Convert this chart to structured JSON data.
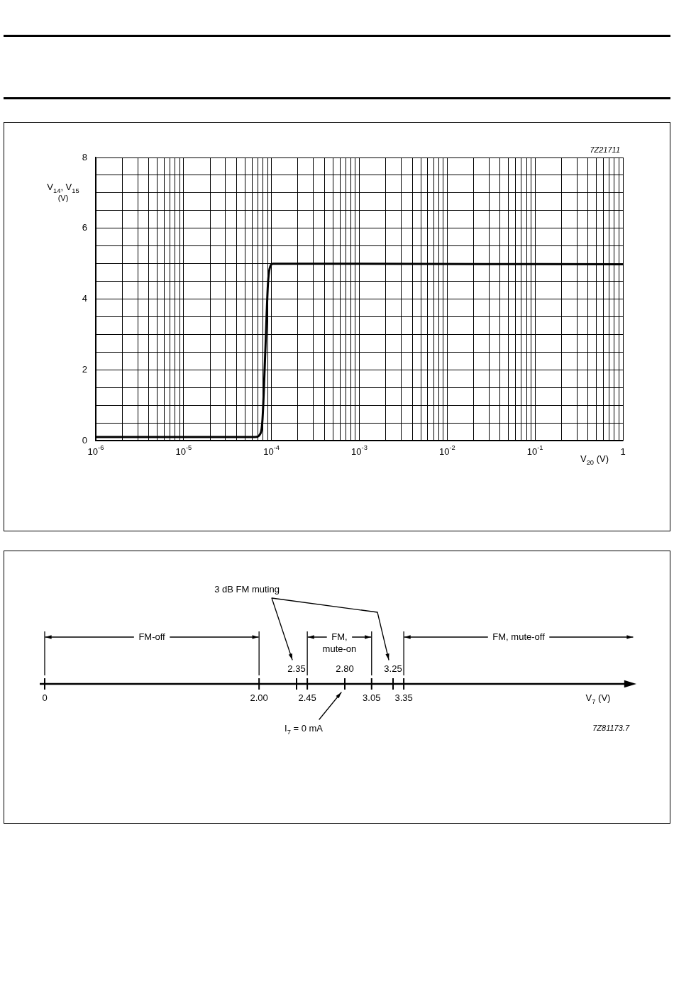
{
  "chart_data": [
    {
      "type": "line",
      "xlabel": "V$_{20}$ (V)",
      "ylabel": "V$_{14}$, V$_{15}$ (V)",
      "annotations": [
        "7Z21711"
      ],
      "log": "x",
      "color": "#000000",
      "x": [
        1e-06,
        6.5e-05,
        7.5e-05,
        7.9e-05,
        8.5e-05,
        9.1e-05,
        9.5e-05,
        0.000105,
        1
      ],
      "values": [
        0.1,
        0.1,
        0.2,
        0.6,
        2.5,
        4.4,
        4.85,
        5,
        4.98
      ],
      "xlim": [
        1e-06,
        1
      ],
      "ylim": [
        0,
        8
      ],
      "grid": true,
      "xticks": [
        {
          "value": 1e-06,
          "label": "10$^{-6}$"
        },
        {
          "value": 2e-06,
          "label": null
        },
        {
          "value": 3e-06,
          "label": null
        },
        {
          "value": 4e-06,
          "label": null
        },
        {
          "value": 5e-06,
          "label": null
        },
        {
          "value": 6e-06,
          "label": null
        },
        {
          "value": 7e-06,
          "label": null
        },
        {
          "value": 8e-06,
          "label": null
        },
        {
          "value": 9e-06,
          "label": null
        },
        {
          "value": 1e-05,
          "label": "10$^{-5}$"
        },
        {
          "value": 2e-05,
          "label": null
        },
        {
          "value": 3e-05,
          "label": null
        },
        {
          "value": 4e-05,
          "label": null
        },
        {
          "value": 5e-05,
          "label": null
        },
        {
          "value": 6e-05,
          "label": null
        },
        {
          "value": 7e-05,
          "label": null
        },
        {
          "value": 8e-05,
          "label": null
        },
        {
          "value": 9e-05,
          "label": null
        },
        {
          "value": 0.0001,
          "label": "10$^{-4}$"
        },
        {
          "value": 0.0002,
          "label": null
        },
        {
          "value": 0.0003,
          "label": null
        },
        {
          "value": 0.0004,
          "label": null
        },
        {
          "value": 0.0005,
          "label": null
        },
        {
          "value": 0.0006,
          "label": null
        },
        {
          "value": 0.0007,
          "label": null
        },
        {
          "value": 0.0008,
          "label": null
        },
        {
          "value": 0.0009,
          "label": null
        },
        {
          "value": 0.001,
          "label": "10$^{-3}$"
        },
        {
          "value": 0.002,
          "label": null
        },
        {
          "value": 0.003,
          "label": null
        },
        {
          "value": 0.004,
          "label": null
        },
        {
          "value": 0.005,
          "label": null
        },
        {
          "value": 0.006,
          "label": null
        },
        {
          "value": 0.007,
          "label": null
        },
        {
          "value": 0.008,
          "label": null
        },
        {
          "value": 0.009,
          "label": null
        },
        {
          "value": 0.01,
          "label": "10$^{-2}$"
        },
        {
          "value": 0.02,
          "label": null
        },
        {
          "value": 0.03,
          "label": null
        },
        {
          "value": 0.04,
          "label": null
        },
        {
          "value": 0.05,
          "label": null
        },
        {
          "value": 0.06,
          "label": null
        },
        {
          "value": 0.07,
          "label": null
        },
        {
          "value": 0.08,
          "label": null
        },
        {
          "value": 0.09,
          "label": null
        },
        {
          "value": 0.1,
          "label": "10$^{-1}$"
        },
        {
          "value": 0.2,
          "label": null
        },
        {
          "value": 0.3,
          "label": null
        },
        {
          "value": 0.4,
          "label": null
        },
        {
          "value": 0.5,
          "label": null
        },
        {
          "value": 0.6,
          "label": null
        },
        {
          "value": 0.7,
          "label": null
        },
        {
          "value": 0.8,
          "label": null
        },
        {
          "value": 0.9,
          "label": null
        },
        1
      ],
      "yticks": [
        0,
        {
          "value": 0.5,
          "label": null
        },
        {
          "value": 1,
          "label": null
        },
        {
          "value": 1.5,
          "label": null
        },
        2,
        {
          "value": 2.5,
          "label": null
        },
        {
          "value": 3,
          "label": null
        },
        {
          "value": 3.5,
          "label": null
        },
        4,
        {
          "value": 4.5,
          "label": null
        },
        {
          "value": 5,
          "label": null
        },
        {
          "value": 5.5,
          "label": null
        },
        6,
        {
          "value": 6.5,
          "label": null
        },
        {
          "value": 7,
          "label": null
        },
        {
          "value": 7.5,
          "label": null
        },
        8
      ]
    },
    {
      "type": "other",
      "xlabel": "V$_{7}$ (V)",
      "annotations": [
        "3 dB FM muting",
        "FM-off",
        "FM,\nmute-on",
        "FM, mute-off",
        "0",
        "2.00",
        "2.35",
        "2.45",
        "2.80",
        "3.05",
        "3.25",
        "3.35",
        "I$_{7}$ = 0 mA",
        "7Z81173.7"
      ]
    }
  ]
}
